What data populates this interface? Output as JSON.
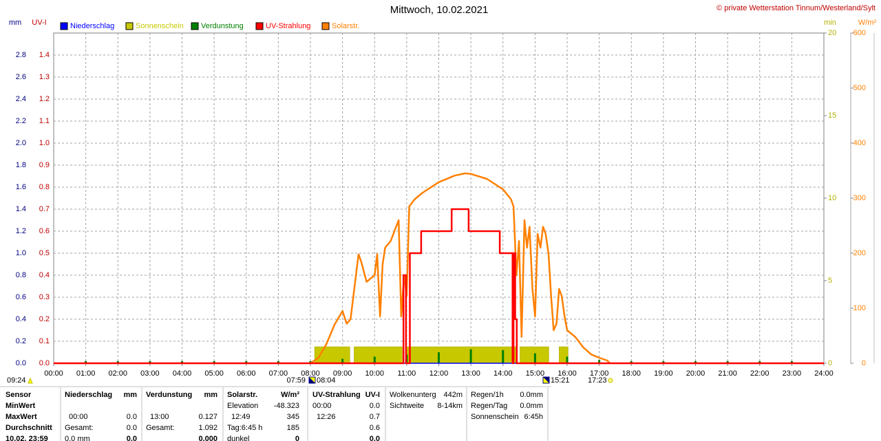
{
  "chart_data": {
    "type": "line",
    "title": "Mittwoch, 10.02.2021",
    "credit": "© private Wetterstation Tinnum/Westerland/Sylt",
    "ylabel": "mm",
    "y2label": "UV-I",
    "y3label": "min",
    "y4label": "W/m²",
    "grid": true,
    "xlim": [
      0,
      24
    ],
    "xticks": [
      {
        "value": 0,
        "label": "00:00"
      },
      {
        "value": 1,
        "label": "01:00"
      },
      {
        "value": 2,
        "label": "02:00"
      },
      {
        "value": 3,
        "label": "03:00"
      },
      {
        "value": 4,
        "label": "04:00"
      },
      {
        "value": 5,
        "label": "05:00"
      },
      {
        "value": 6,
        "label": "06:00"
      },
      {
        "value": 7,
        "label": "07:00"
      },
      {
        "value": 8,
        "label": "08:00"
      },
      {
        "value": 9,
        "label": "09:00"
      },
      {
        "value": 10,
        "label": "10:00"
      },
      {
        "value": 11,
        "label": "11:00"
      },
      {
        "value": 12,
        "label": "12:00"
      },
      {
        "value": 13,
        "label": "13:00"
      },
      {
        "value": 14,
        "label": "14:00"
      },
      {
        "value": 15,
        "label": "15:00"
      },
      {
        "value": 16,
        "label": "16:00"
      },
      {
        "value": 17,
        "label": "17:00"
      },
      {
        "value": 18,
        "label": "18:00"
      },
      {
        "value": 19,
        "label": "19:00"
      },
      {
        "value": 20,
        "label": "20:00"
      },
      {
        "value": 21,
        "label": "21:00"
      },
      {
        "value": 22,
        "label": "22:00"
      },
      {
        "value": 23,
        "label": "23:00"
      },
      {
        "value": 24,
        "label": "24:00"
      }
    ],
    "ylim": [
      0,
      3.0
    ],
    "yticks": [
      {
        "value": 0,
        "label": "0.0"
      },
      {
        "value": 0.2,
        "label": "0.2"
      },
      {
        "value": 0.4,
        "label": "0.4"
      },
      {
        "value": 0.6,
        "label": "0.6"
      },
      {
        "value": 0.8,
        "label": "0.8"
      },
      {
        "value": 1,
        "label": "1.0"
      },
      {
        "value": 1.2,
        "label": "1.2"
      },
      {
        "value": 1.4,
        "label": "1.4"
      },
      {
        "value": 1.6,
        "label": "1.6"
      },
      {
        "value": 1.8,
        "label": "1.8"
      },
      {
        "value": 2,
        "label": "2.0"
      },
      {
        "value": 2.2,
        "label": "2.2"
      },
      {
        "value": 2.4,
        "label": "2.4"
      },
      {
        "value": 2.6,
        "label": "2.6"
      },
      {
        "value": 2.8,
        "label": "2.8"
      }
    ],
    "y2lim": [
      0,
      1.5
    ],
    "y2ticks": [
      {
        "value": 0,
        "label": "0.0"
      },
      {
        "value": 0.1,
        "label": "0.1"
      },
      {
        "value": 0.2,
        "label": "0.2"
      },
      {
        "value": 0.3,
        "label": "0.3"
      },
      {
        "value": 0.4,
        "label": "0.4"
      },
      {
        "value": 0.5,
        "label": "0.5"
      },
      {
        "value": 0.6,
        "label": "0.6"
      },
      {
        "value": 0.7,
        "label": "0.7"
      },
      {
        "value": 0.8,
        "label": "0.8"
      },
      {
        "value": 0.9,
        "label": "0.9"
      },
      {
        "value": 1,
        "label": "1.0"
      },
      {
        "value": 1.1,
        "label": "1.1"
      },
      {
        "value": 1.2,
        "label": "1.2"
      },
      {
        "value": 1.3,
        "label": "1.3"
      },
      {
        "value": 1.4,
        "label": "1.4"
      }
    ],
    "y3lim": [
      0,
      20
    ],
    "y3ticks": [
      0,
      5,
      10,
      15,
      20
    ],
    "y4lim": [
      0,
      600
    ],
    "y4ticks": [
      0,
      100,
      200,
      300,
      400,
      500,
      600
    ],
    "series": [
      {
        "name": "Niederschlag",
        "color": "#0000ff",
        "style": "line",
        "axis": "y",
        "x": [
          0,
          24
        ],
        "values": [
          0,
          0
        ]
      },
      {
        "name": "Sonnenschein",
        "color": "#c8c800",
        "style": "bars",
        "axis": "y3",
        "x": [
          8.13,
          9.36,
          10.97,
          14.53,
          15.75
        ],
        "x_end": [
          9.23,
          10.86,
          14.42,
          15.43,
          16.03
        ],
        "values": [
          1.0,
          1.0,
          1.0,
          1.0,
          1.0
        ]
      },
      {
        "name": "Verdunstung",
        "color": "#008000",
        "style": "stems",
        "axis": "y",
        "x": [
          1,
          2,
          3,
          4,
          5,
          6,
          7,
          8,
          9,
          10,
          11,
          12,
          13,
          14,
          15,
          16,
          17,
          18,
          19,
          20,
          21,
          22,
          23
        ],
        "values": [
          0.02,
          0.02,
          0.02,
          0.02,
          0.02,
          0.02,
          0.02,
          0.02,
          0.04,
          0.06,
          0.08,
          0.1,
          0.127,
          0.12,
          0.09,
          0.06,
          0.03,
          0.02,
          0.02,
          0.02,
          0.02,
          0.02,
          0.02
        ]
      },
      {
        "name": "UV-Strahlung",
        "color": "#ff0000",
        "style": "line",
        "axis": "y2",
        "x": [
          0,
          10.9,
          10.9,
          10.98,
          10.98,
          11.1,
          11.1,
          11.45,
          11.45,
          12.4,
          12.4,
          12.93,
          12.93,
          13.9,
          13.9,
          14.3,
          14.3,
          14.33,
          14.33,
          14.38,
          14.38,
          14.43,
          14.43,
          24
        ],
        "values": [
          0,
          0,
          0.4,
          0.4,
          0,
          0,
          0.5,
          0.5,
          0.6,
          0.6,
          0.7,
          0.7,
          0.6,
          0.6,
          0.5,
          0.5,
          0,
          0,
          0.5,
          0.5,
          0.2,
          0.2,
          0,
          0
        ]
      },
      {
        "name": "Solarstr.",
        "color": "#ff8000",
        "style": "line",
        "axis": "y4",
        "x": [
          8.0,
          8.25,
          8.5,
          8.75,
          9.0,
          9.13,
          9.25,
          9.5,
          9.58,
          9.75,
          10.0,
          10.08,
          10.17,
          10.25,
          10.33,
          10.5,
          10.67,
          10.75,
          10.83,
          10.92,
          11.0,
          11.08,
          11.25,
          11.5,
          12.0,
          12.5,
          12.82,
          13.0,
          13.5,
          14.0,
          14.25,
          14.33,
          14.42,
          14.5,
          14.58,
          14.67,
          14.75,
          14.83,
          14.92,
          15.0,
          15.08,
          15.17,
          15.25,
          15.33,
          15.42,
          15.5,
          15.58,
          15.67,
          15.75,
          15.83,
          15.92,
          16.0,
          16.25,
          16.5,
          16.75,
          17.0,
          17.25,
          17.33
        ],
        "values": [
          0,
          10,
          35,
          70,
          95,
          72,
          80,
          198,
          185,
          148,
          160,
          198,
          85,
          180,
          210,
          222,
          248,
          260,
          85,
          160,
          122,
          285,
          298,
          310,
          329,
          341,
          345,
          344,
          335,
          316,
          298,
          285,
          160,
          222,
          48,
          260,
          210,
          248,
          135,
          85,
          235,
          210,
          248,
          235,
          198,
          122,
          60,
          72,
          135,
          122,
          85,
          60,
          48,
          29,
          16,
          10,
          5,
          0
        ]
      }
    ],
    "sun_labels": [
      "09:24",
      "07:59",
      "08:04",
      "15:21",
      "17:23"
    ]
  },
  "stats_table": {
    "rows": [
      [
        "Sensor",
        "Niederschlag",
        "mm",
        "Verdunstung",
        "mm",
        "Solarstr.",
        "W/m²",
        "UV-Strahlung",
        "UV-I",
        "Wolkenunterg",
        "442m",
        "Regen/1h",
        "0.0mm"
      ],
      [
        "MinWert",
        null,
        null,
        null,
        null,
        "Elevation",
        "-48.323",
        "00:00",
        "0.0",
        "Sichtweite",
        "8-14km",
        "Regen/Tag",
        "0.0mm"
      ],
      [
        "MaxWert",
        "00:00",
        "0.0",
        "13:00",
        "0.127",
        "12:49",
        "345",
        "12:26",
        "0.7",
        null,
        null,
        "Sonnenschein",
        "6:45h"
      ],
      [
        "Durchschnitt",
        "Gesamt:",
        "0.0",
        "Gesamt:",
        "1.092",
        "Tag:6:45 h",
        "185",
        null,
        "0.6",
        null,
        null,
        null,
        null
      ],
      [
        "10.02. 23:59",
        "0.0 mm",
        "0.0",
        null,
        "0.000",
        "dunkel",
        "0",
        null,
        "0.0",
        null,
        null,
        null,
        null
      ]
    ]
  }
}
